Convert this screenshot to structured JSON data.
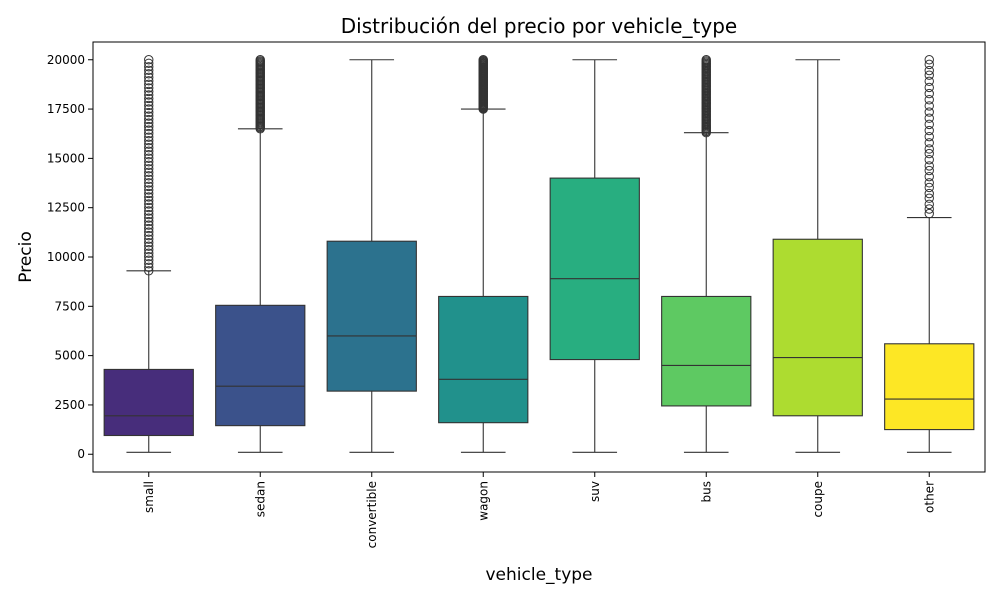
{
  "chart_data": {
    "type": "box",
    "title": "Distribución del precio por vehicle_type",
    "xlabel": "vehicle_type",
    "ylabel": "Precio",
    "ylim": [
      -900,
      20900
    ],
    "yticks": [
      0,
      2500,
      5000,
      7500,
      10000,
      12500,
      15000,
      17500,
      20000
    ],
    "grid": false,
    "categories": [
      "small",
      "sedan",
      "convertible",
      "wagon",
      "suv",
      "bus",
      "coupe",
      "other"
    ],
    "colors": [
      "#472d7b",
      "#3b528b",
      "#2c728e",
      "#21918c",
      "#28ae80",
      "#5ec962",
      "#addc30",
      "#fde725"
    ],
    "boxes": [
      {
        "category": "small",
        "whisker_low": 100,
        "q1": 950,
        "median": 1950,
        "q3": 4300,
        "whisker_high": 9300,
        "outliers_from": 9300,
        "outliers_to": 20000,
        "outlier_density": "dense"
      },
      {
        "category": "sedan",
        "whisker_low": 100,
        "q1": 1450,
        "median": 3450,
        "q3": 7550,
        "whisker_high": 16500,
        "outliers_from": 16500,
        "outliers_to": 20000,
        "outlier_density": "dense"
      },
      {
        "category": "convertible",
        "whisker_low": 100,
        "q1": 3200,
        "median": 6000,
        "q3": 10800,
        "whisker_high": 20000,
        "outliers_from": null,
        "outliers_to": null,
        "outlier_density": "none"
      },
      {
        "category": "wagon",
        "whisker_low": 100,
        "q1": 1600,
        "median": 3800,
        "q3": 8000,
        "whisker_high": 17500,
        "outliers_from": 17500,
        "outliers_to": 20000,
        "outlier_density": "dense"
      },
      {
        "category": "suv",
        "whisker_low": 100,
        "q1": 4800,
        "median": 8900,
        "q3": 14000,
        "whisker_high": 20000,
        "outliers_from": null,
        "outliers_to": null,
        "outlier_density": "none"
      },
      {
        "category": "bus",
        "whisker_low": 100,
        "q1": 2450,
        "median": 4500,
        "q3": 8000,
        "whisker_high": 16300,
        "outliers_from": 16300,
        "outliers_to": 20000,
        "outlier_density": "dense"
      },
      {
        "category": "coupe",
        "whisker_low": 100,
        "q1": 1950,
        "median": 4900,
        "q3": 10900,
        "whisker_high": 20000,
        "outliers_from": null,
        "outliers_to": null,
        "outlier_density": "none"
      },
      {
        "category": "other",
        "whisker_low": 100,
        "q1": 1250,
        "median": 2800,
        "q3": 5600,
        "whisker_high": 12000,
        "outliers_from": 12200,
        "outliers_to": 20000,
        "outlier_density": "sparse"
      }
    ]
  }
}
